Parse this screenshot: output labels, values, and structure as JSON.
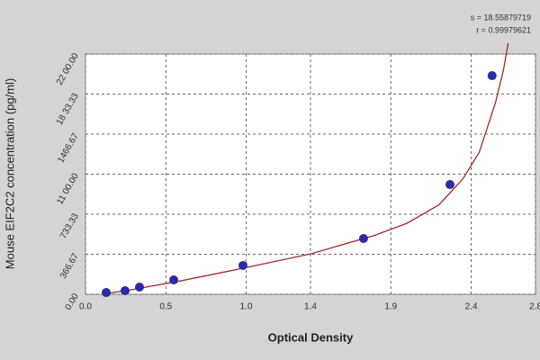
{
  "chart_data": {
    "type": "scatter",
    "xlabel": "Optical Density",
    "ylabel": "Mouse EIF2C2 concentration (pg/ml)",
    "annotations": [
      "s = 18.55879719",
      "r = 0.99979621"
    ],
    "x": [
      0.129,
      0.246,
      0.336,
      0.549,
      0.98,
      1.73,
      2.268,
      2.53
    ],
    "values": [
      16,
      33,
      66,
      132,
      264,
      511,
      1005,
      2002
    ],
    "color": "#2b2ba8",
    "curve": {
      "x": [
        0.1,
        0.3,
        0.6,
        1.0,
        1.4,
        1.8,
        2.0,
        2.2,
        2.35,
        2.45,
        2.55,
        2.6,
        2.63
      ],
      "values": [
        0,
        45,
        125,
        245,
        370,
        540,
        650,
        820,
        1060,
        1300,
        1750,
        2050,
        2300
      ],
      "color": "#a52a2a"
    },
    "xlim": [
      0,
      2.8
    ],
    "xticks": [
      {
        "value": 0,
        "label": "0.0"
      },
      0.5,
      {
        "value": 1,
        "label": "1.0"
      },
      1.4,
      1.9,
      2.4,
      2.8
    ],
    "ylim": [
      0,
      2200
    ],
    "yticks": [
      {
        "value": 0,
        "label": "0.00"
      },
      366.67,
      733.33,
      {
        "value": 1100,
        "label": "11 00.00"
      },
      1466.67,
      {
        "value": 1833.33,
        "label": "18 33.33"
      },
      {
        "value": 2200,
        "label": "22 00.00"
      }
    ],
    "grid": true
  }
}
